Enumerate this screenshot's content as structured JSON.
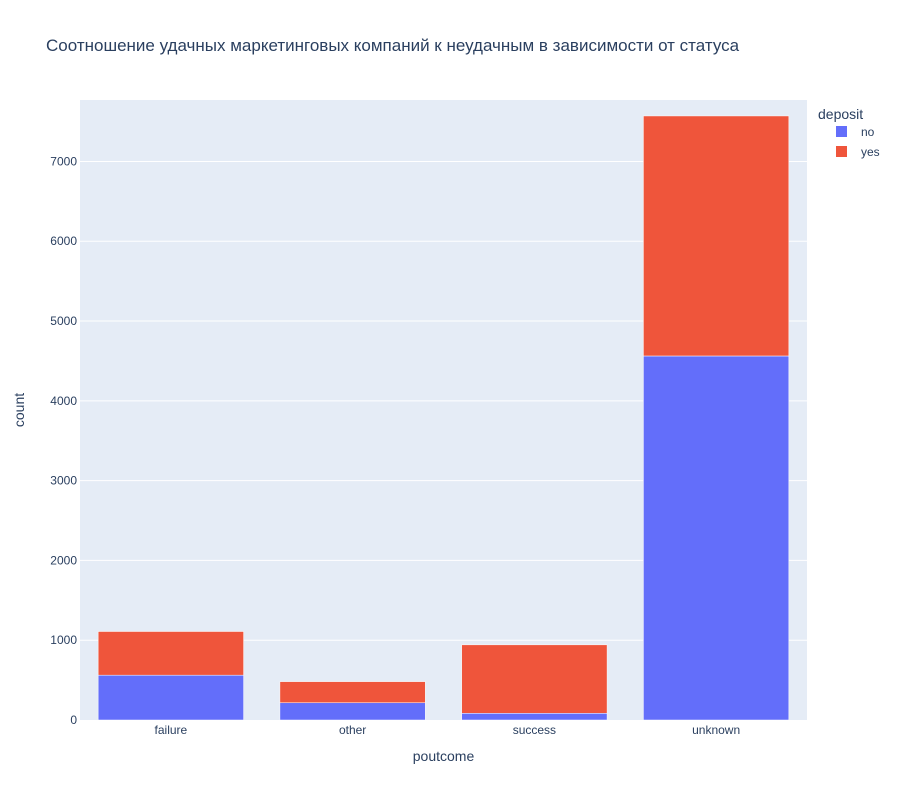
{
  "chart_data": {
    "type": "bar",
    "stacked": true,
    "title": "Соотношение удачных маркетинговых компаний к неудачным в зависимости от статуса",
    "xlabel": "poutcome",
    "ylabel": "count",
    "categories": [
      "failure",
      "other",
      "success",
      "unknown"
    ],
    "series": [
      {
        "name": "no",
        "color": "#636efa",
        "values": [
          562,
          216,
          84,
          4562
        ]
      },
      {
        "name": "yes",
        "color": "#ef553b",
        "values": [
          547,
          265,
          858,
          3008
        ]
      }
    ],
    "ylim": [
      0,
      7770
    ],
    "yticks": [
      0,
      1000,
      2000,
      3000,
      4000,
      5000,
      6000,
      7000
    ],
    "grid": true,
    "legend": {
      "title": "deposit",
      "position": "top-right"
    },
    "colors": {
      "plot_bg": "#e5ecf6",
      "grid": "#ffffff",
      "text": "#2a3f5f"
    }
  }
}
